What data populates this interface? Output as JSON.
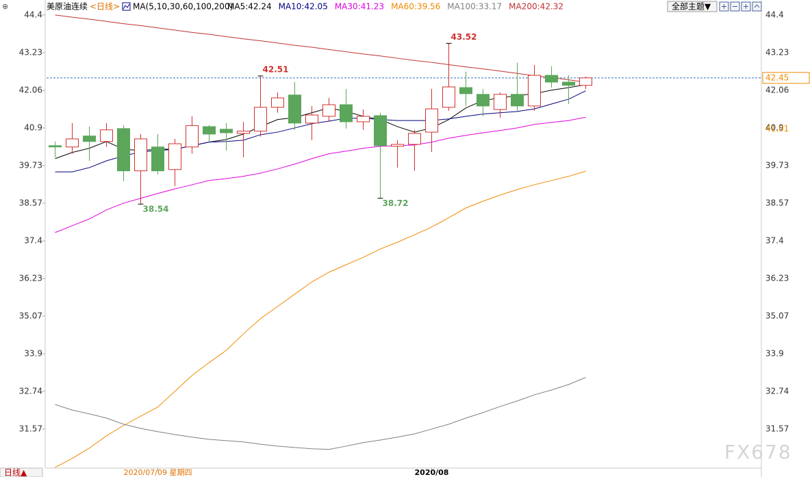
{
  "chart_data": {
    "type": "candlestick",
    "title": "美原油连续",
    "period": "<日线>",
    "indicator": "MA(5,10,30,60,100,200)",
    "theme_button": "全部主题▼",
    "period_button": "日线▲",
    "watermark": "FX678",
    "categories": [
      null,
      null,
      null,
      null,
      null,
      null,
      "2020/07/09 星期四",
      null,
      null,
      null,
      null,
      null,
      null,
      null,
      null,
      null,
      null,
      null,
      null,
      null,
      null,
      null,
      "2020/08",
      null,
      null,
      null,
      null,
      null,
      null,
      null,
      null,
      null
    ],
    "open": [
      40.35,
      40.31,
      40.65,
      40.48,
      40.88,
      39.57,
      40.31,
      39.61,
      40.31,
      40.94,
      40.86,
      40.73,
      40.8,
      41.54,
      41.92,
      41.05,
      41.26,
      41.62,
      41.09,
      41.28,
      40.33,
      40.39,
      40.77,
      41.54,
      42.15,
      41.94,
      41.47,
      41.94,
      41.58,
      42.53,
      42.32,
      42.22
    ],
    "high": [
      40.48,
      41.05,
      40.94,
      41.05,
      40.99,
      40.71,
      40.71,
      40.56,
      41.26,
      40.99,
      41.05,
      41.09,
      42.51,
      42.0,
      42.32,
      41.58,
      41.83,
      42.11,
      41.47,
      41.37,
      40.52,
      40.84,
      42.11,
      43.52,
      42.64,
      42.11,
      42.0,
      42.92,
      42.85,
      42.81,
      42.53,
      42.49
    ],
    "low": [
      39.99,
      40.1,
      39.88,
      40.31,
      39.25,
      38.54,
      39.46,
      39.1,
      40.1,
      40.46,
      40.2,
      39.99,
      40.63,
      41.37,
      40.84,
      40.52,
      41.09,
      40.88,
      40.84,
      38.72,
      39.67,
      39.57,
      40.16,
      41.43,
      41.58,
      41.26,
      41.22,
      41.43,
      41.43,
      42.15,
      41.64,
      42.11
    ],
    "close": [
      40.31,
      40.56,
      40.48,
      40.84,
      39.57,
      40.56,
      39.57,
      40.41,
      40.97,
      40.71,
      40.75,
      40.8,
      41.54,
      41.83,
      41.05,
      41.3,
      41.62,
      41.09,
      41.26,
      40.35,
      40.39,
      40.73,
      41.49,
      42.17,
      41.96,
      41.58,
      41.94,
      41.58,
      42.53,
      42.32,
      42.22,
      42.45
    ],
    "up_color": "#d0302c",
    "down_color": "#5ba65b",
    "series": [
      {
        "name": "MA5:42.24",
        "color": "#000000",
        "values": [
          39.95,
          40.14,
          40.27,
          40.48,
          40.24,
          40.2,
          40.24,
          40.24,
          40.35,
          40.46,
          40.54,
          40.71,
          40.94,
          41.16,
          41.22,
          41.37,
          41.52,
          41.41,
          41.26,
          41.16,
          40.94,
          40.77,
          40.9,
          41.16,
          41.52,
          41.75,
          41.83,
          41.9,
          41.96,
          42.07,
          42.15,
          42.24
        ]
      },
      {
        "name": "MA10:42.05",
        "color": "#000080",
        "values": [
          39.54,
          39.54,
          39.67,
          39.88,
          40.03,
          40.16,
          40.2,
          40.24,
          40.35,
          40.46,
          40.48,
          40.52,
          40.69,
          40.77,
          40.9,
          41.03,
          41.11,
          41.2,
          41.2,
          41.16,
          41.13,
          41.13,
          41.13,
          41.18,
          41.26,
          41.33,
          41.37,
          41.41,
          41.49,
          41.64,
          41.79,
          42.05
        ]
      },
      {
        "name": "MA30:41.23",
        "color": "#e000e0",
        "values": [
          37.66,
          37.87,
          38.08,
          38.36,
          38.57,
          38.72,
          38.87,
          39.01,
          39.14,
          39.27,
          39.33,
          39.4,
          39.5,
          39.63,
          39.78,
          39.95,
          40.1,
          40.18,
          40.27,
          40.33,
          40.35,
          40.37,
          40.46,
          40.58,
          40.67,
          40.75,
          40.82,
          40.9,
          41.01,
          41.07,
          41.13,
          41.23
        ]
      },
      {
        "name": "MA60:39.56",
        "color": "#f08a00",
        "values": [
          30.38,
          30.66,
          30.98,
          31.36,
          31.68,
          31.97,
          32.25,
          32.74,
          33.23,
          33.63,
          34.01,
          34.52,
          34.99,
          35.37,
          35.75,
          36.13,
          36.43,
          36.66,
          36.89,
          37.15,
          37.36,
          37.59,
          37.83,
          38.12,
          38.42,
          38.63,
          38.82,
          38.99,
          39.14,
          39.27,
          39.4,
          39.56
        ]
      },
      {
        "name": "MA100:33.17",
        "color": "#808080",
        "values": [
          32.33,
          32.16,
          32.04,
          31.91,
          31.72,
          31.59,
          31.49,
          31.4,
          31.32,
          31.25,
          31.21,
          31.17,
          31.1,
          31.04,
          31.0,
          30.96,
          30.94,
          31.04,
          31.15,
          31.23,
          31.32,
          31.42,
          31.57,
          31.72,
          31.91,
          32.08,
          32.27,
          32.44,
          32.63,
          32.78,
          32.95,
          33.17
        ]
      },
      {
        "name": "MA200:42.32",
        "color": "#c03030",
        "values": [
          44.4,
          44.33,
          44.27,
          44.2,
          44.13,
          44.07,
          44.0,
          43.93,
          43.86,
          43.8,
          43.73,
          43.66,
          43.6,
          43.53,
          43.46,
          43.4,
          43.33,
          43.26,
          43.19,
          43.13,
          43.06,
          42.99,
          42.93,
          42.86,
          42.79,
          42.73,
          42.66,
          42.59,
          42.52,
          42.46,
          42.39,
          42.32
        ]
      }
    ],
    "annotations": [
      {
        "at": 12,
        "value": 42.51,
        "color": "#d0302c"
      },
      {
        "at": 23,
        "value": 43.52,
        "color": "#d0302c"
      },
      {
        "at": 5,
        "value": 38.54,
        "color": "#5ba65b"
      },
      {
        "at": 19,
        "value": 38.72,
        "color": "#5ba65b"
      }
    ],
    "last_price": 42.45,
    "highlight_value": 41.01,
    "ylim": [
      30.36,
      44.8
    ],
    "yticks": [
      44.4,
      43.23,
      42.06,
      40.9,
      39.73,
      38.57,
      37.4,
      36.23,
      35.07,
      33.9,
      32.74,
      31.57
    ]
  }
}
